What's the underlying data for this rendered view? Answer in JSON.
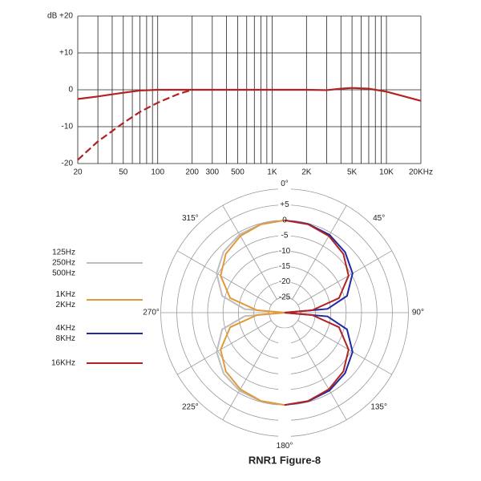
{
  "chart_data": [
    {
      "type": "line",
      "xscale": "log",
      "xlim": [
        20,
        20000
      ],
      "ylim": [
        -20,
        20
      ],
      "xticks": [
        20,
        50,
        100,
        200,
        300,
        500,
        {
          "value": 1000,
          "label": "1K"
        },
        {
          "value": 2000,
          "label": "2K"
        },
        {
          "value": 5000,
          "label": "5K"
        },
        {
          "value": 10000,
          "label": "10K"
        },
        {
          "value": 20000,
          "label": "20KHz"
        }
      ],
      "x_minor_grid": [
        30,
        40,
        60,
        70,
        80,
        90,
        400,
        600,
        700,
        800,
        900,
        3000,
        4000,
        6000,
        7000,
        8000,
        9000
      ],
      "yticks": [
        {
          "value": 20,
          "label": "dB +20"
        },
        {
          "value": 10,
          "label": "+10"
        },
        0,
        -10,
        -20
      ],
      "grid": true,
      "series": [
        {
          "color": "#b22222",
          "dash": false,
          "x": [
            20,
            30,
            50,
            70,
            100,
            200,
            1000,
            2000,
            3000,
            4000,
            5000,
            7000,
            10000,
            20000
          ],
          "values": [
            -2.5,
            -1.8,
            -0.8,
            -0.2,
            0,
            0,
            0,
            0,
            -0.1,
            0.3,
            0.5,
            0.3,
            -0.5,
            -3
          ]
        },
        {
          "color": "#b22222",
          "dash": true,
          "x": [
            20,
            30,
            50,
            70,
            100,
            150,
            200
          ],
          "values": [
            -19,
            -14,
            -9,
            -6,
            -3.5,
            -1.2,
            0
          ]
        }
      ]
    },
    {
      "type": "polar",
      "title": "RNR1 Figure-8",
      "rlim": [
        -30,
        5
      ],
      "rticks": [
        {
          "value": 5,
          "label": "+5"
        },
        0,
        -5,
        -10,
        -15,
        -20,
        -25
      ],
      "angle_labels": [
        {
          "value": 0,
          "label": "0°"
        },
        {
          "value": 45,
          "label": "45°"
        },
        {
          "value": 90,
          "label": "90°"
        },
        {
          "value": 135,
          "label": "135°"
        },
        {
          "value": 180,
          "label": "180°"
        },
        {
          "value": 225,
          "label": "225°"
        },
        {
          "value": 270,
          "label": "270°"
        },
        {
          "value": 315,
          "label": "315°"
        }
      ],
      "series": [
        {
          "name": [
            "125Hz",
            "250Hz",
            "500Hz"
          ],
          "color": "#bdbdbd",
          "theta": [
            180,
            195,
            210,
            225,
            240,
            255,
            265,
            270,
            275,
            285,
            300,
            315,
            330,
            345,
            360
          ],
          "values": [
            0,
            -0.2,
            -0.7,
            -2,
            -4.5,
            -9,
            -17,
            -30,
            -17,
            -9,
            -4.5,
            -2,
            -0.7,
            -0.2,
            0
          ]
        },
        {
          "name": [
            "1KHz",
            "2KHz"
          ],
          "color": "#e09a3a",
          "theta": [
            180,
            195,
            210,
            225,
            240,
            255,
            265,
            270,
            275,
            285,
            300,
            315,
            330,
            345,
            360
          ],
          "values": [
            0,
            -0.3,
            -1.25,
            -3,
            -6,
            -11.7,
            -21,
            -30,
            -21,
            -11.7,
            -6,
            -3,
            -1.25,
            -0.3,
            0
          ]
        },
        {
          "name": [
            "4KHz",
            "8KHz"
          ],
          "color": "#1f2aa0",
          "theta": [
            0,
            15,
            30,
            45,
            60,
            75,
            85,
            90,
            95,
            105,
            120,
            135,
            150,
            165,
            180
          ],
          "values": [
            0,
            -0.2,
            -0.8,
            -2.2,
            -4.5,
            -9,
            -16,
            -30,
            -16,
            -9,
            -4.5,
            -2.2,
            -0.8,
            -0.2,
            0
          ]
        },
        {
          "name": [
            "16KHz"
          ],
          "color": "#b22222",
          "theta": [
            0,
            15,
            30,
            45,
            60,
            75,
            85,
            90,
            95,
            105,
            120,
            135,
            150,
            165,
            180
          ],
          "values": [
            0,
            -0.3,
            -1.25,
            -3,
            -6,
            -11.7,
            -21,
            -30,
            -21,
            -11.7,
            -6,
            -3,
            -1.25,
            -0.3,
            0
          ]
        }
      ]
    }
  ]
}
